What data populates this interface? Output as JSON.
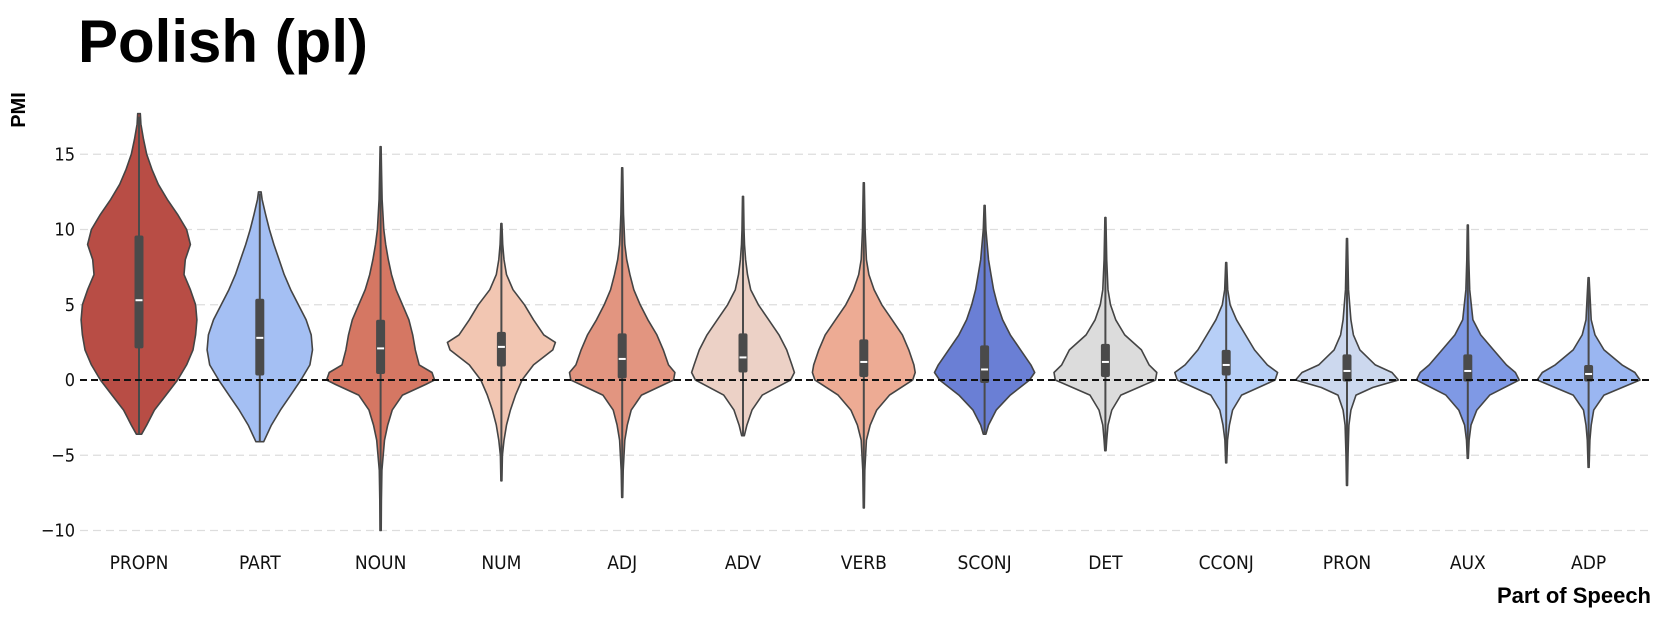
{
  "chart_data": {
    "type": "violin",
    "title": "Polish (pl)",
    "xlabel": "Part of Speech",
    "ylabel": "PMI",
    "ylim": [
      -10.2,
      18.5
    ],
    "yticks": [
      -10,
      -5,
      0,
      5,
      10,
      15
    ],
    "grid": true,
    "reference_line": 0,
    "categories": [
      "PROPN",
      "PART",
      "NOUN",
      "NUM",
      "ADJ",
      "ADV",
      "VERB",
      "SCONJ",
      "DET",
      "CCONJ",
      "PRON",
      "AUX",
      "ADP"
    ],
    "series": [
      {
        "name": "PROPN",
        "color": "#b84d45",
        "min": -3.6,
        "max": 17.7,
        "q1": 2.1,
        "median": 5.3,
        "q3": 9.6,
        "whisker_low": -3.6,
        "whisker_high": 17.5,
        "density": [
          [
            -3.6,
            0.02
          ],
          [
            -3,
            0.06
          ],
          [
            -2,
            0.12
          ],
          [
            -1,
            0.21
          ],
          [
            0,
            0.3
          ],
          [
            1,
            0.37
          ],
          [
            2,
            0.42
          ],
          [
            3,
            0.44
          ],
          [
            4,
            0.45
          ],
          [
            5,
            0.44
          ],
          [
            6,
            0.4
          ],
          [
            7,
            0.35
          ],
          [
            8,
            0.36
          ],
          [
            9,
            0.4
          ],
          [
            10,
            0.37
          ],
          [
            11,
            0.3
          ],
          [
            12,
            0.22
          ],
          [
            13,
            0.15
          ],
          [
            14,
            0.1
          ],
          [
            15,
            0.06
          ],
          [
            16,
            0.035
          ],
          [
            17,
            0.015
          ],
          [
            17.7,
            0.01
          ]
        ]
      },
      {
        "name": "PART",
        "color": "#a4bff3",
        "min": -4.1,
        "max": 12.5,
        "q1": 0.3,
        "median": 2.8,
        "q3": 5.4,
        "whisker_low": -4.1,
        "whisker_high": 12.4,
        "density": [
          [
            -4.1,
            0.03
          ],
          [
            -3,
            0.09
          ],
          [
            -2,
            0.16
          ],
          [
            -1,
            0.24
          ],
          [
            0,
            0.32
          ],
          [
            1,
            0.39
          ],
          [
            2,
            0.41
          ],
          [
            3,
            0.4
          ],
          [
            4,
            0.36
          ],
          [
            5,
            0.3
          ],
          [
            6,
            0.24
          ],
          [
            7,
            0.19
          ],
          [
            8,
            0.15
          ],
          [
            9,
            0.11
          ],
          [
            10,
            0.075
          ],
          [
            11,
            0.045
          ],
          [
            12,
            0.018
          ],
          [
            12.5,
            0.01
          ]
        ]
      },
      {
        "name": "NOUN",
        "color": "#d57763",
        "min": -10,
        "max": 15.5,
        "q1": 0.4,
        "median": 2.1,
        "q3": 4.0,
        "whisker_low": -10,
        "whisker_high": 15.5,
        "density": [
          [
            -10,
            0.005
          ],
          [
            -8,
            0.006
          ],
          [
            -6,
            0.01
          ],
          [
            -4,
            0.03
          ],
          [
            -3,
            0.055
          ],
          [
            -2,
            0.09
          ],
          [
            -1,
            0.17
          ],
          [
            -0.3,
            0.35
          ],
          [
            0,
            0.42
          ],
          [
            0.5,
            0.4
          ],
          [
            1,
            0.3
          ],
          [
            2,
            0.27
          ],
          [
            3,
            0.25
          ],
          [
            4,
            0.22
          ],
          [
            5,
            0.17
          ],
          [
            6,
            0.12
          ],
          [
            7,
            0.085
          ],
          [
            8,
            0.06
          ],
          [
            9,
            0.04
          ],
          [
            10,
            0.025
          ],
          [
            12,
            0.012
          ],
          [
            14,
            0.007
          ],
          [
            15.5,
            0.004
          ]
        ]
      },
      {
        "name": "NUM",
        "color": "#f2c6b2",
        "min": -6.7,
        "max": 10.4,
        "q1": 0.9,
        "median": 2.2,
        "q3": 3.2,
        "whisker_low": -6.7,
        "whisker_high": 10.4,
        "density": [
          [
            -6.7,
            0.004
          ],
          [
            -5,
            0.008
          ],
          [
            -4,
            0.02
          ],
          [
            -3,
            0.04
          ],
          [
            -2,
            0.07
          ],
          [
            -1,
            0.11
          ],
          [
            0,
            0.16
          ],
          [
            1,
            0.25
          ],
          [
            2,
            0.4
          ],
          [
            2.5,
            0.42
          ],
          [
            3,
            0.33
          ],
          [
            4,
            0.25
          ],
          [
            5,
            0.18
          ],
          [
            6,
            0.09
          ],
          [
            7,
            0.04
          ],
          [
            8,
            0.02
          ],
          [
            9,
            0.01
          ],
          [
            10.4,
            0.004
          ]
        ]
      },
      {
        "name": "ADJ",
        "color": "#e29580",
        "min": -7.8,
        "max": 14.1,
        "q1": 0.1,
        "median": 1.4,
        "q3": 3.1,
        "whisker_low": -7.8,
        "whisker_high": 14.1,
        "density": [
          [
            -7.8,
            0.004
          ],
          [
            -6,
            0.008
          ],
          [
            -4,
            0.02
          ],
          [
            -3,
            0.04
          ],
          [
            -2,
            0.07
          ],
          [
            -1,
            0.15
          ],
          [
            0,
            0.4
          ],
          [
            0.5,
            0.41
          ],
          [
            1,
            0.36
          ],
          [
            2,
            0.32
          ],
          [
            3,
            0.27
          ],
          [
            4,
            0.2
          ],
          [
            5,
            0.14
          ],
          [
            6,
            0.09
          ],
          [
            7,
            0.06
          ],
          [
            8,
            0.035
          ],
          [
            9,
            0.02
          ],
          [
            11,
            0.01
          ],
          [
            14.1,
            0.004
          ]
        ]
      },
      {
        "name": "ADV",
        "color": "#ecd1c6",
        "min": -3.7,
        "max": 12.2,
        "q1": 0.5,
        "median": 1.5,
        "q3": 3.1,
        "whisker_low": -3.7,
        "whisker_high": 12.2,
        "density": [
          [
            -3.7,
            0.01
          ],
          [
            -3,
            0.03
          ],
          [
            -2,
            0.07
          ],
          [
            -1,
            0.15
          ],
          [
            0,
            0.37
          ],
          [
            0.5,
            0.4
          ],
          [
            1,
            0.38
          ],
          [
            2,
            0.34
          ],
          [
            3,
            0.28
          ],
          [
            4,
            0.2
          ],
          [
            5,
            0.12
          ],
          [
            6,
            0.06
          ],
          [
            7,
            0.035
          ],
          [
            8,
            0.02
          ],
          [
            9,
            0.012
          ],
          [
            10,
            0.008
          ],
          [
            12.2,
            0.004
          ]
        ]
      },
      {
        "name": "VERB",
        "color": "#edab94",
        "min": -8.5,
        "max": 13.1,
        "q1": 0.2,
        "median": 1.2,
        "q3": 2.7,
        "whisker_low": -8.5,
        "whisker_high": 13.1,
        "density": [
          [
            -8.5,
            0.004
          ],
          [
            -6,
            0.008
          ],
          [
            -4,
            0.02
          ],
          [
            -3,
            0.05
          ],
          [
            -2,
            0.1
          ],
          [
            -1,
            0.2
          ],
          [
            0,
            0.38
          ],
          [
            0.5,
            0.4
          ],
          [
            1,
            0.39
          ],
          [
            2,
            0.35
          ],
          [
            3,
            0.3
          ],
          [
            4,
            0.22
          ],
          [
            5,
            0.14
          ],
          [
            6,
            0.08
          ],
          [
            7,
            0.04
          ],
          [
            8,
            0.02
          ],
          [
            10,
            0.01
          ],
          [
            13.1,
            0.004
          ]
        ]
      },
      {
        "name": "SCONJ",
        "color": "#6a7fd5",
        "min": -3.6,
        "max": 11.6,
        "q1": -0.2,
        "median": 0.7,
        "q3": 2.3,
        "whisker_low": -3.6,
        "whisker_high": 11.6,
        "density": [
          [
            -3.6,
            0.01
          ],
          [
            -3,
            0.03
          ],
          [
            -2,
            0.09
          ],
          [
            -1,
            0.2
          ],
          [
            0,
            0.35
          ],
          [
            0.5,
            0.39
          ],
          [
            1,
            0.36
          ],
          [
            2,
            0.28
          ],
          [
            3,
            0.2
          ],
          [
            4,
            0.14
          ],
          [
            5,
            0.1
          ],
          [
            6,
            0.07
          ],
          [
            7,
            0.05
          ],
          [
            8,
            0.03
          ],
          [
            9,
            0.02
          ],
          [
            10,
            0.01
          ],
          [
            11.6,
            0.004
          ]
        ]
      },
      {
        "name": "DET",
        "color": "#dcdcdc",
        "min": -4.7,
        "max": 10.8,
        "q1": 0.2,
        "median": 1.2,
        "q3": 2.4,
        "whisker_low": -4.7,
        "whisker_high": 10.8,
        "density": [
          [
            -4.7,
            0.005
          ],
          [
            -4,
            0.01
          ],
          [
            -3,
            0.02
          ],
          [
            -2,
            0.05
          ],
          [
            -1,
            0.12
          ],
          [
            0,
            0.39
          ],
          [
            0.5,
            0.4
          ],
          [
            1,
            0.34
          ],
          [
            2,
            0.28
          ],
          [
            3,
            0.15
          ],
          [
            4,
            0.08
          ],
          [
            5,
            0.04
          ],
          [
            6,
            0.02
          ],
          [
            8,
            0.01
          ],
          [
            10.8,
            0.004
          ]
        ]
      },
      {
        "name": "CCONJ",
        "color": "#b7cff7",
        "min": -5.5,
        "max": 7.8,
        "q1": 0.3,
        "median": 1.0,
        "q3": 2.0,
        "whisker_low": -5.5,
        "whisker_high": 7.8,
        "density": [
          [
            -5.5,
            0.004
          ],
          [
            -4,
            0.01
          ],
          [
            -3,
            0.025
          ],
          [
            -2,
            0.05
          ],
          [
            -1,
            0.12
          ],
          [
            0,
            0.38
          ],
          [
            0.5,
            0.4
          ],
          [
            1,
            0.32
          ],
          [
            2,
            0.22
          ],
          [
            3,
            0.15
          ],
          [
            4,
            0.08
          ],
          [
            5,
            0.03
          ],
          [
            6,
            0.012
          ],
          [
            7.8,
            0.004
          ]
        ]
      },
      {
        "name": "PRON",
        "color": "#ccd8ee",
        "min": -7.0,
        "max": 9.4,
        "q1": -0.1,
        "median": 0.6,
        "q3": 1.7,
        "whisker_low": -7.0,
        "whisker_high": 9.4,
        "density": [
          [
            -7,
            0.004
          ],
          [
            -5,
            0.008
          ],
          [
            -3,
            0.015
          ],
          [
            -2,
            0.03
          ],
          [
            -1,
            0.07
          ],
          [
            -0.5,
            0.2
          ],
          [
            0,
            0.4
          ],
          [
            0.5,
            0.35
          ],
          [
            1,
            0.22
          ],
          [
            2,
            0.1
          ],
          [
            3,
            0.05
          ],
          [
            4,
            0.03
          ],
          [
            6,
            0.012
          ],
          [
            9.4,
            0.004
          ]
        ]
      },
      {
        "name": "AUX",
        "color": "#7f99e5",
        "min": -5.2,
        "max": 10.3,
        "q1": -0.1,
        "median": 0.6,
        "q3": 1.7,
        "whisker_low": -5.2,
        "whisker_high": 10.3,
        "density": [
          [
            -5.2,
            0.004
          ],
          [
            -4,
            0.01
          ],
          [
            -3,
            0.025
          ],
          [
            -2,
            0.07
          ],
          [
            -1,
            0.17
          ],
          [
            0,
            0.4
          ],
          [
            0.5,
            0.37
          ],
          [
            1,
            0.3
          ],
          [
            2,
            0.2
          ],
          [
            3,
            0.1
          ],
          [
            4,
            0.04
          ],
          [
            6,
            0.015
          ],
          [
            8,
            0.008
          ],
          [
            10.3,
            0.004
          ]
        ]
      },
      {
        "name": "ADP",
        "color": "#9ab6f1",
        "min": -5.8,
        "max": 6.8,
        "q1": -0.1,
        "median": 0.4,
        "q3": 1.0,
        "whisker_low": -5.8,
        "whisker_high": 6.8,
        "density": [
          [
            -5.8,
            0.004
          ],
          [
            -4,
            0.01
          ],
          [
            -3,
            0.02
          ],
          [
            -2,
            0.04
          ],
          [
            -1,
            0.12
          ],
          [
            0,
            0.4
          ],
          [
            0.5,
            0.36
          ],
          [
            1,
            0.26
          ],
          [
            2,
            0.12
          ],
          [
            3,
            0.05
          ],
          [
            4,
            0.02
          ],
          [
            6.8,
            0.004
          ]
        ]
      }
    ]
  }
}
